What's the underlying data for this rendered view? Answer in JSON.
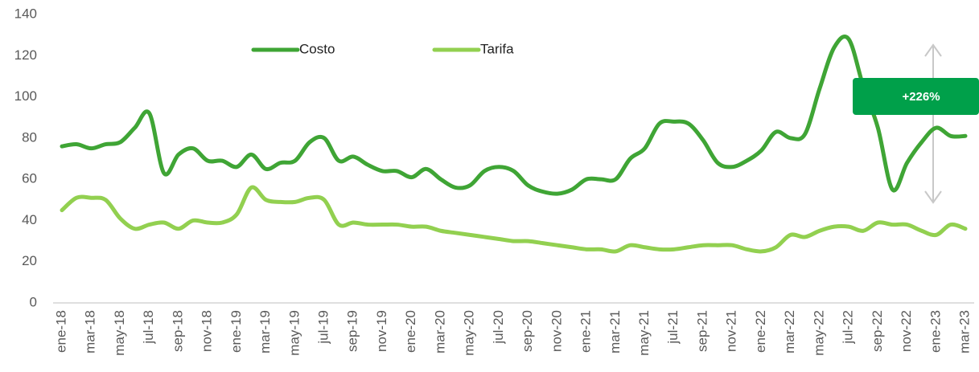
{
  "chart_data": {
    "type": "line",
    "categories": [
      "ene-18",
      null,
      "mar-18",
      null,
      "may-18",
      null,
      "jul-18",
      null,
      "sep-18",
      null,
      "nov-18",
      null,
      "ene-19",
      null,
      "mar-19",
      null,
      "may-19",
      null,
      "jul-19",
      null,
      "sep-19",
      null,
      "nov-19",
      null,
      "ene-20",
      null,
      "mar-20",
      null,
      "may-20",
      null,
      "jul-20",
      null,
      "sep-20",
      null,
      "nov-20",
      null,
      "ene-21",
      null,
      "mar-21",
      null,
      "may-21",
      null,
      "jul-21",
      null,
      "sep-21",
      null,
      "nov-21",
      null,
      "ene-22",
      null,
      "mar-22",
      null,
      "may-22",
      null,
      "jul-22",
      null,
      "sep-22",
      null,
      "nov-22",
      null,
      "ene-23",
      null,
      "mar-23"
    ],
    "series": [
      {
        "name": "Costo",
        "color": "#3fa535",
        "values": [
          76,
          77,
          75,
          77,
          78,
          85,
          92,
          63,
          72,
          75,
          69,
          69,
          66,
          72,
          65,
          68,
          69,
          78,
          80,
          69,
          71,
          67,
          64,
          64,
          61,
          65,
          60,
          56,
          57,
          64,
          66,
          64,
          57,
          54,
          53,
          55,
          60,
          60,
          60,
          70,
          75,
          87,
          88,
          87,
          79,
          68,
          66,
          69,
          74,
          83,
          80,
          82,
          104,
          124,
          128,
          105,
          85,
          55,
          68,
          78,
          85,
          81,
          81
        ]
      },
      {
        "name": "Tarifa",
        "color": "#92d050",
        "values": [
          45,
          51,
          51,
          50,
          41,
          36,
          38,
          39,
          36,
          40,
          39,
          39,
          43,
          56,
          50,
          49,
          49,
          51,
          50,
          38,
          39,
          38,
          38,
          38,
          37,
          37,
          35,
          34,
          33,
          32,
          31,
          30,
          30,
          29,
          28,
          27,
          26,
          26,
          25,
          28,
          27,
          26,
          26,
          27,
          28,
          28,
          28,
          26,
          25,
          27,
          33,
          32,
          35,
          37,
          37,
          35,
          39,
          38,
          38,
          35,
          33,
          38,
          36
        ]
      }
    ],
    "annotation": "+226%",
    "ylim": [
      0,
      140
    ],
    "yticks": [
      0,
      20,
      40,
      60,
      80,
      100,
      120,
      140
    ],
    "grid": false,
    "legend": "top"
  }
}
